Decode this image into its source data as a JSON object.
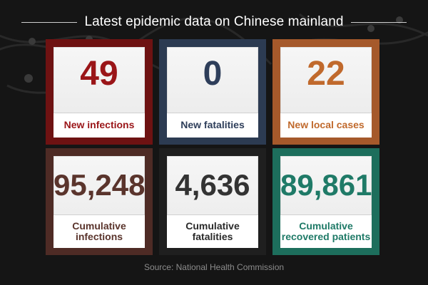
{
  "title": "Latest epidemic data on Chinese mainland",
  "cards": [
    {
      "value": "49",
      "label_lines": [
        "New infections"
      ],
      "frame_color": "#6e1212",
      "value_color": "#9a1518",
      "label_color": "#9a1518"
    },
    {
      "value": "0",
      "label_lines": [
        "New fatalities"
      ],
      "frame_color": "#2c3b52",
      "value_color": "#2e3e5a",
      "label_color": "#2e3e5a"
    },
    {
      "value": "22",
      "label_lines": [
        "New local cases"
      ],
      "frame_color": "#a5592b",
      "value_color": "#c0692c",
      "label_color": "#c0692c"
    },
    {
      "value": "95,248",
      "label_lines": [
        "Cumulative",
        "infections"
      ],
      "frame_color": "#4e2b25",
      "value_color": "#5a342c",
      "label_color": "#5a342c"
    },
    {
      "value": "4,636",
      "label_lines": [
        "Cumulative",
        "fatalities"
      ],
      "frame_color": "#1f1f1f",
      "value_color": "#333333",
      "label_color": "#2a2a2a"
    },
    {
      "value": "89,861",
      "label_lines": [
        "Cumulative",
        "recovered patients"
      ],
      "frame_color": "#1d6e5c",
      "value_color": "#1f7a67",
      "label_color": "#1f7a67"
    }
  ],
  "source": "Source: National Health Commission"
}
